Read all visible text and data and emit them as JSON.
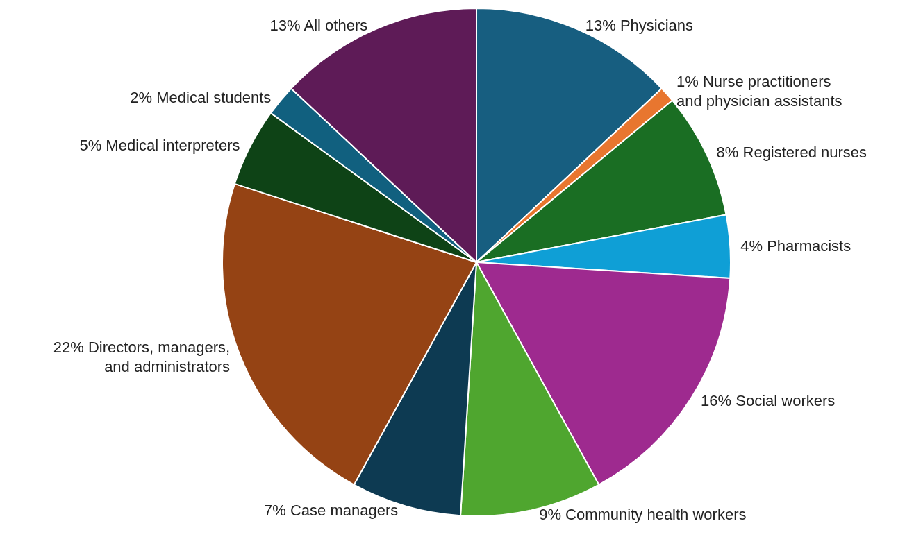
{
  "chart_data": {
    "type": "pie",
    "categories": [
      "Physicians",
      "Nurse practitioners and physician assistants",
      "Registered nurses",
      "Pharmacists",
      "Social workers",
      "Community health workers",
      "Case managers",
      "Directors, managers, and administrators",
      "Medical interpreters",
      "Medical students",
      "All others"
    ],
    "values": [
      13,
      1,
      8,
      4,
      16,
      9,
      7,
      22,
      5,
      2,
      13
    ],
    "value_labels": [
      "13%",
      "1%",
      "8%",
      "4%",
      "16%",
      "9%",
      "7%",
      "22%",
      "5%",
      "2%",
      "13%"
    ],
    "colors": [
      "#175e80",
      "#e8762f",
      "#1a6e23",
      "#0f9fd6",
      "#9e2a8f",
      "#4fa62f",
      "#0d3a52",
      "#954314",
      "#0e4316",
      "#11607f",
      "#5e1b57"
    ],
    "legend": false
  }
}
